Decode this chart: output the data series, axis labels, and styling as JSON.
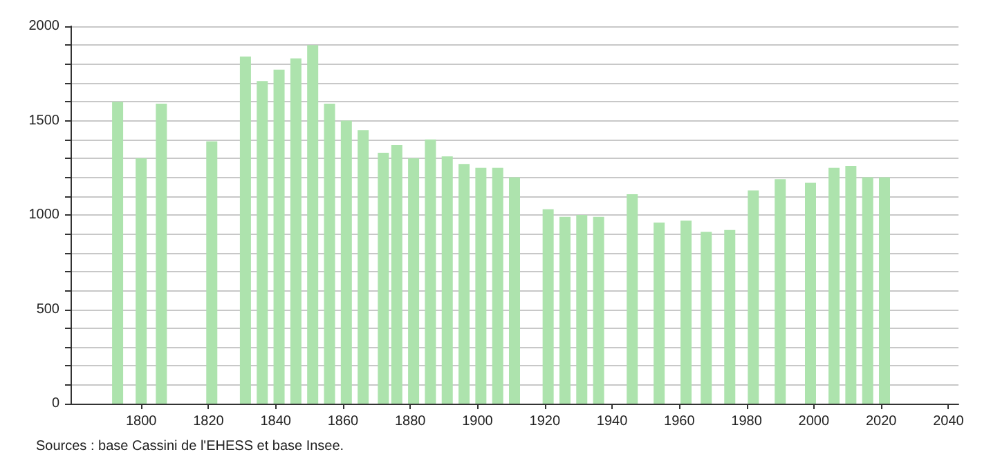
{
  "chart_data": {
    "type": "bar",
    "x": [
      1793,
      1800,
      1806,
      1821,
      1831,
      1836,
      1841,
      1846,
      1851,
      1856,
      1861,
      1866,
      1872,
      1876,
      1881,
      1886,
      1891,
      1896,
      1901,
      1906,
      1911,
      1921,
      1926,
      1931,
      1936,
      1946,
      1954,
      1962,
      1968,
      1975,
      1982,
      1990,
      1999,
      2006,
      2011,
      2016,
      2021
    ],
    "values": [
      1600,
      1300,
      1590,
      1390,
      1840,
      1710,
      1770,
      1830,
      1900,
      1590,
      1500,
      1450,
      1330,
      1370,
      1300,
      1400,
      1310,
      1270,
      1250,
      1250,
      1200,
      1030,
      990,
      1000,
      990,
      1110,
      960,
      970,
      910,
      920,
      1130,
      1190,
      1170,
      1250,
      1260,
      1200,
      1200
    ],
    "color": "#ade3ad",
    "xlim": [
      1779,
      2043
    ],
    "xticks": [
      1800,
      1820,
      1840,
      1860,
      1880,
      1900,
      1920,
      1940,
      1960,
      1980,
      2000,
      2020,
      2040
    ],
    "ylim": [
      0,
      2000
    ],
    "yticks": [
      0,
      {
        "value": 100,
        "label": null
      },
      {
        "value": 200,
        "label": null
      },
      {
        "value": 300,
        "label": null
      },
      {
        "value": 400,
        "label": null
      },
      500,
      {
        "value": 600,
        "label": null
      },
      {
        "value": 700,
        "label": null
      },
      {
        "value": 800,
        "label": null
      },
      {
        "value": 900,
        "label": null
      },
      1000,
      {
        "value": 1100,
        "label": null
      },
      {
        "value": 1200,
        "label": null
      },
      {
        "value": 1300,
        "label": null
      },
      {
        "value": 1400,
        "label": null
      },
      1500,
      {
        "value": 1600,
        "label": null
      },
      {
        "value": 1700,
        "label": null
      },
      {
        "value": 1800,
        "label": null
      },
      {
        "value": 1900,
        "label": null
      },
      2000
    ],
    "grid": "y",
    "annotations": [
      "Sources : base Cassini de l'EHESS et base Insee."
    ]
  }
}
